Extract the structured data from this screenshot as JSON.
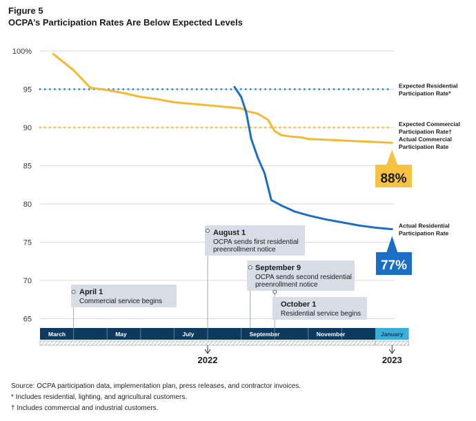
{
  "figure": {
    "label": "Figure 5",
    "title": "OCPA’s Participation Rates Are Below Expected Levels"
  },
  "chart_data": {
    "type": "line",
    "title": "OCPA’s Participation Rates Are Below Expected Levels",
    "xlabel": "",
    "ylabel": "",
    "ylim": [
      62,
      100
    ],
    "y_ticks": [
      {
        "value": 100,
        "label": "100%"
      },
      {
        "value": 95,
        "label": "95"
      },
      {
        "value": 90,
        "label": "90"
      },
      {
        "value": 85,
        "label": "85"
      },
      {
        "value": 80,
        "label": "80"
      },
      {
        "value": 75,
        "label": "75"
      },
      {
        "value": 70,
        "label": "70"
      },
      {
        "value": 65,
        "label": "65"
      }
    ],
    "x_unit": "month index (0 = start of March 2022, 10 = start of January 2023)",
    "months": [
      {
        "m": 0,
        "label": "March"
      },
      {
        "m": 1,
        "label": ""
      },
      {
        "m": 2,
        "label": "May"
      },
      {
        "m": 3,
        "label": ""
      },
      {
        "m": 4,
        "label": "July"
      },
      {
        "m": 5,
        "label": ""
      },
      {
        "m": 6,
        "label": "September"
      },
      {
        "m": 7,
        "label": ""
      },
      {
        "m": 8,
        "label": "November"
      },
      {
        "m": 9,
        "label": ""
      },
      {
        "m": 10,
        "label": "January"
      }
    ],
    "year_markers": [
      {
        "m": 5,
        "label": "2022"
      },
      {
        "m": 10.5,
        "label": "2023"
      }
    ],
    "series": [
      {
        "name": "Expected Residential Participation Rate*",
        "label_lines": [
          "Expected Residential",
          "Participation Rate*"
        ],
        "style": "dotted",
        "color": "#4a90d9",
        "points": [
          [
            0,
            95
          ],
          [
            10.5,
            95
          ]
        ]
      },
      {
        "name": "Expected Commercial Participation Rate†",
        "label_lines": [
          "Expected Commercial",
          "Participation Rate†"
        ],
        "style": "dotted",
        "color": "#f5c242",
        "points": [
          [
            0,
            90
          ],
          [
            10.5,
            90
          ]
        ]
      },
      {
        "name": "Actual Commercial Participation Rate",
        "label_lines": [
          "Actual Commercial",
          "Participation Rate"
        ],
        "style": "solid",
        "color": "#f5b833",
        "points": [
          [
            0.4,
            99.6
          ],
          [
            1.0,
            97.5
          ],
          [
            1.5,
            95.2
          ],
          [
            2.0,
            94.9
          ],
          [
            2.5,
            94.5
          ],
          [
            3.0,
            94.0
          ],
          [
            3.5,
            93.7
          ],
          [
            4.0,
            93.3
          ],
          [
            4.5,
            93.1
          ],
          [
            5.0,
            92.9
          ],
          [
            5.5,
            92.7
          ],
          [
            6.0,
            92.5
          ],
          [
            6.2,
            92.1
          ],
          [
            6.5,
            91.8
          ],
          [
            6.8,
            91.0
          ],
          [
            7.0,
            89.5
          ],
          [
            7.2,
            89.0
          ],
          [
            7.5,
            88.8
          ],
          [
            7.8,
            88.7
          ],
          [
            8.0,
            88.5
          ],
          [
            8.5,
            88.4
          ],
          [
            9.0,
            88.3
          ],
          [
            9.5,
            88.2
          ],
          [
            10.0,
            88.1
          ],
          [
            10.5,
            88.0
          ]
        ],
        "end_value_label": "88%"
      },
      {
        "name": "Actual Residential Participation Rate",
        "label_lines": [
          "Actual Residential",
          "Participation Rate"
        ],
        "style": "solid",
        "color": "#1a6fc4",
        "points": [
          [
            5.8,
            95.3
          ],
          [
            6.0,
            94.0
          ],
          [
            6.15,
            92.0
          ],
          [
            6.3,
            88.5
          ],
          [
            6.5,
            86.0
          ],
          [
            6.7,
            84.0
          ],
          [
            6.9,
            80.5
          ],
          [
            7.2,
            79.8
          ],
          [
            7.6,
            79.0
          ],
          [
            8.0,
            78.5
          ],
          [
            8.5,
            78.0
          ],
          [
            9.0,
            77.6
          ],
          [
            9.5,
            77.2
          ],
          [
            10.0,
            76.9
          ],
          [
            10.5,
            76.7
          ]
        ],
        "end_value_label": "77%"
      }
    ],
    "annotations": [
      {
        "m": 1.0,
        "y": 68.5,
        "title": "April 1",
        "text_lines": [
          "Commercial service begins"
        ]
      },
      {
        "m": 5.0,
        "y": 76.5,
        "title": "August 1",
        "text_lines": [
          "OCPA sends first residential",
          "preenrollment notice"
        ]
      },
      {
        "m": 6.27,
        "y": 71.7,
        "title": "September 9",
        "text_lines": [
          "OCPA sends second residential",
          "preenrollment notice"
        ]
      },
      {
        "m": 7.0,
        "y": 68.5,
        "title": "October 1",
        "text_lines": [
          "Residential service begins"
        ]
      }
    ]
  },
  "footnotes": {
    "source": "Source:  OCPA participation data, implementation plan, press releases, and contractor invoices.",
    "note_star": "*  Includes residential, lighting, and agricultural customers.",
    "note_dagger": "†  Includes commercial and industrial customers."
  }
}
